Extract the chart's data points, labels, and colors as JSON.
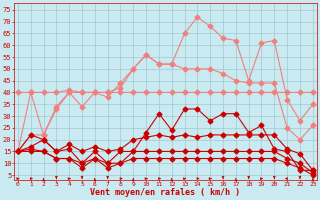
{
  "bg_color": "#c8eaf0",
  "grid_color": "#9bbfc8",
  "line_color_light": "#f08080",
  "line_color_dark": "#cc0000",
  "xlabel": "Vent moyen/en rafales ( km/h )",
  "xlabel_color": "#cc0000",
  "tick_color": "#cc0000",
  "yticks": [
    5,
    10,
    15,
    20,
    25,
    30,
    35,
    40,
    45,
    50,
    55,
    60,
    65,
    70,
    75
  ],
  "xticks": [
    0,
    1,
    2,
    3,
    4,
    5,
    6,
    7,
    8,
    9,
    10,
    11,
    12,
    13,
    14,
    15,
    16,
    17,
    18,
    19,
    20,
    21,
    22,
    23
  ],
  "ylim": [
    3,
    78
  ],
  "xlim": [
    -0.3,
    23.3
  ],
  "series_light": [
    [
      40,
      40,
      40,
      40,
      41,
      40,
      40,
      40,
      40,
      40,
      40,
      40,
      40,
      40,
      40,
      40,
      40,
      40,
      40,
      40,
      40,
      40,
      40,
      40
    ],
    [
      15,
      40,
      22,
      33,
      40,
      40,
      40,
      38,
      44,
      50,
      56,
      52,
      52,
      50,
      50,
      50,
      48,
      45,
      44,
      44,
      44,
      25,
      20,
      26
    ],
    [
      15,
      22,
      22,
      34,
      40,
      34,
      40,
      40,
      42,
      50,
      56,
      52,
      52,
      65,
      72,
      68,
      63,
      62,
      45,
      61,
      62,
      37,
      28,
      35
    ]
  ],
  "series_dark": [
    [
      15,
      22,
      20,
      15,
      16,
      10,
      15,
      10,
      15,
      15,
      23,
      31,
      24,
      33,
      33,
      28,
      31,
      31,
      23,
      26,
      16,
      15,
      7,
      7
    ],
    [
      15,
      17,
      20,
      15,
      18,
      15,
      17,
      15,
      16,
      20,
      21,
      22,
      21,
      22,
      21,
      22,
      22,
      22,
      22,
      22,
      22,
      16,
      14,
      7
    ],
    [
      15,
      16,
      15,
      12,
      12,
      10,
      12,
      10,
      10,
      15,
      15,
      15,
      15,
      15,
      15,
      15,
      15,
      15,
      15,
      15,
      15,
      12,
      10,
      6
    ],
    [
      15,
      15,
      15,
      12,
      12,
      8,
      12,
      8,
      10,
      12,
      12,
      12,
      12,
      12,
      12,
      12,
      12,
      12,
      12,
      12,
      12,
      10,
      8,
      5
    ]
  ],
  "arrow_dirs": [
    45,
    0,
    90,
    270,
    45,
    270,
    90,
    270,
    0,
    90,
    45,
    0,
    90,
    45,
    0,
    45,
    270,
    90,
    270,
    45,
    270,
    180,
    270,
    90
  ],
  "marker_size": 2.5
}
